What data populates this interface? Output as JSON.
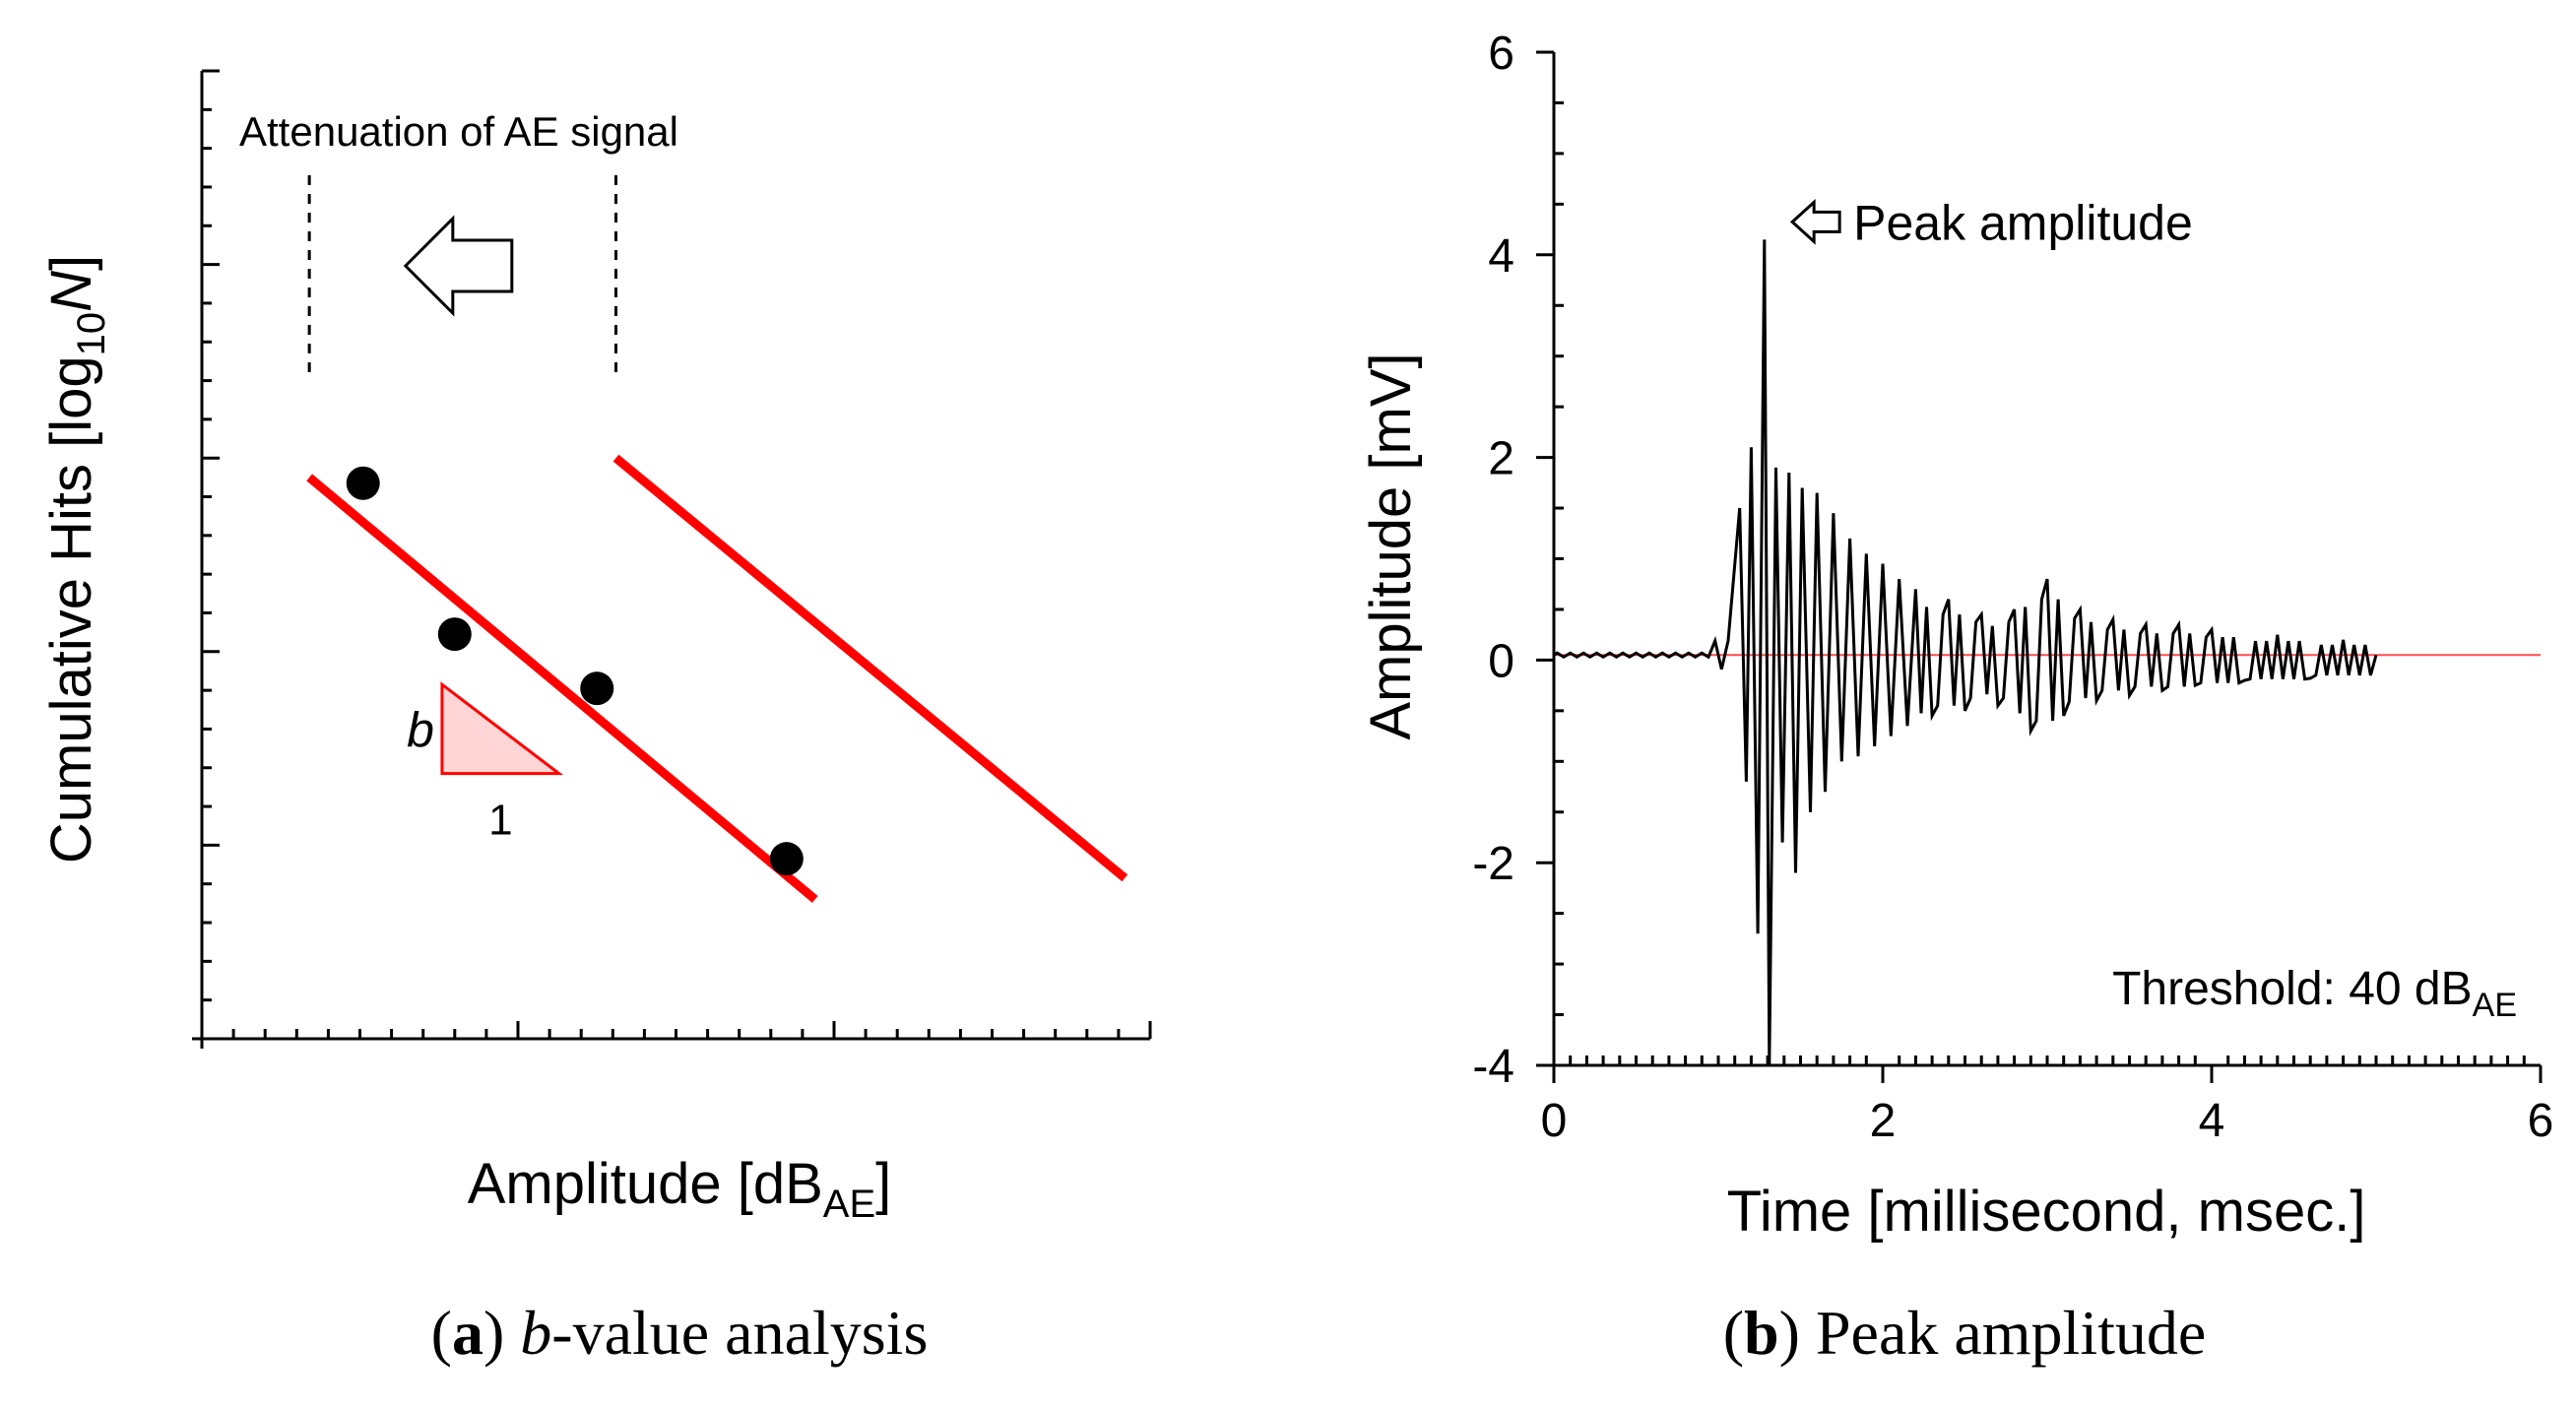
{
  "colors": {
    "axis": "#000000",
    "fit": "#ff0000",
    "wedge_fill": "#ffd5d5",
    "baseline": "#ff4d4d"
  },
  "caption_a": {
    "label": "a",
    "italic": "b",
    "rest": "-value analysis"
  },
  "caption_b": {
    "label": "b",
    "rest": " Peak amplitude"
  },
  "chart_data": [
    {
      "id": "a",
      "type": "scatter",
      "title": "b-value analysis",
      "xlabel": {
        "main": "Amplitude [dB",
        "sub": "AE",
        "end": "]"
      },
      "ylabel": {
        "main": "Cumulative Hits [log",
        "sub": "10",
        "var": "N",
        "end": "]"
      },
      "xlim": [
        0,
        3
      ],
      "ylim": [
        0,
        5
      ],
      "xticks": [
        1,
        2
      ],
      "yticks": [
        1,
        2,
        3,
        4,
        5
      ],
      "points": [
        {
          "x": 0.51,
          "y": 2.87
        },
        {
          "x": 0.8,
          "y": 2.09
        },
        {
          "x": 1.25,
          "y": 1.81
        },
        {
          "x": 1.85,
          "y": 0.93
        }
      ],
      "fit_lines": [
        {
          "name": "fit",
          "x": [
            0.34,
            1.94
          ],
          "y": [
            2.9,
            0.72
          ]
        },
        {
          "name": "shifted",
          "x": [
            1.31,
            2.92
          ],
          "y": [
            3.0,
            0.83
          ]
        }
      ],
      "annotation": {
        "text": "Attenuation of AE signal",
        "from_x": 1.31,
        "to_x": 0.34,
        "direction": "left"
      },
      "slope_triangle": {
        "vertical": "b",
        "horizontal": "1",
        "x0": 0.76,
        "x1": 1.13,
        "y_top": 1.83,
        "y_bottom": 1.37
      }
    },
    {
      "id": "b",
      "type": "line",
      "title": "Peak amplitude",
      "xlabel": "Time [millisecond, msec.]",
      "ylabel": "Amplitude [mV]",
      "xlim": [
        0,
        6
      ],
      "ylim": [
        -4,
        6
      ],
      "xticks": [
        "0",
        "2",
        "4",
        "6"
      ],
      "yticks": [
        "-4",
        "-2",
        "0",
        "2",
        "4",
        "6"
      ],
      "baseline": 0.05,
      "signal_duration": [
        0,
        5.0
      ],
      "series": [
        {
          "name": "waveform",
          "peaks": [
            {
              "t": 1.13,
              "v": 1.5
            },
            {
              "t": 1.17,
              "v": -1.2
            },
            {
              "t": 1.2,
              "v": 2.1
            },
            {
              "t": 1.24,
              "v": -2.7
            },
            {
              "t": 1.28,
              "v": 4.15
            },
            {
              "t": 1.31,
              "v": -4.0
            },
            {
              "t": 1.35,
              "v": 1.9
            },
            {
              "t": 1.39,
              "v": -1.8
            },
            {
              "t": 1.43,
              "v": 1.85
            },
            {
              "t": 1.47,
              "v": -2.1
            },
            {
              "t": 1.51,
              "v": 1.7
            },
            {
              "t": 1.56,
              "v": -1.5
            },
            {
              "t": 1.6,
              "v": 1.65
            },
            {
              "t": 1.65,
              "v": -1.3
            },
            {
              "t": 1.7,
              "v": 1.45
            },
            {
              "t": 1.75,
              "v": -1.0
            },
            {
              "t": 1.8,
              "v": 1.2
            },
            {
              "t": 1.85,
              "v": -0.95
            },
            {
              "t": 1.9,
              "v": 1.05
            },
            {
              "t": 1.95,
              "v": -0.85
            },
            {
              "t": 2.0,
              "v": 0.95
            },
            {
              "t": 2.05,
              "v": -0.75
            },
            {
              "t": 2.1,
              "v": 0.8
            },
            {
              "t": 2.15,
              "v": -0.65
            },
            {
              "t": 2.2,
              "v": 0.7
            },
            {
              "t": 2.3,
              "v": -0.55
            },
            {
              "t": 2.4,
              "v": 0.6
            },
            {
              "t": 2.5,
              "v": -0.5
            },
            {
              "t": 2.6,
              "v": 0.45
            },
            {
              "t": 2.7,
              "v": -0.45
            },
            {
              "t": 2.8,
              "v": 0.5
            },
            {
              "t": 2.9,
              "v": -0.7
            },
            {
              "t": 3.0,
              "v": 0.8
            },
            {
              "t": 3.1,
              "v": -0.55
            },
            {
              "t": 3.2,
              "v": 0.5
            },
            {
              "t": 3.3,
              "v": -0.4
            },
            {
              "t": 3.4,
              "v": 0.4
            },
            {
              "t": 3.5,
              "v": -0.35
            },
            {
              "t": 3.6,
              "v": 0.35
            },
            {
              "t": 3.7,
              "v": -0.3
            },
            {
              "t": 3.8,
              "v": 0.35
            },
            {
              "t": 3.9,
              "v": -0.25
            },
            {
              "t": 4.0,
              "v": 0.3
            },
            {
              "t": 4.2,
              "v": -0.2
            },
            {
              "t": 4.4,
              "v": 0.25
            },
            {
              "t": 4.6,
              "v": -0.18
            },
            {
              "t": 4.8,
              "v": 0.2
            },
            {
              "t": 5.0,
              "v": 0.05
            }
          ]
        }
      ],
      "annotations": [
        {
          "text": "Peak amplitude",
          "x": 1.45,
          "y": 4.15,
          "arrow": "left"
        },
        {
          "text": "Threshold: 40 dB",
          "sub": "AE",
          "position": "bottom-right"
        }
      ]
    }
  ]
}
